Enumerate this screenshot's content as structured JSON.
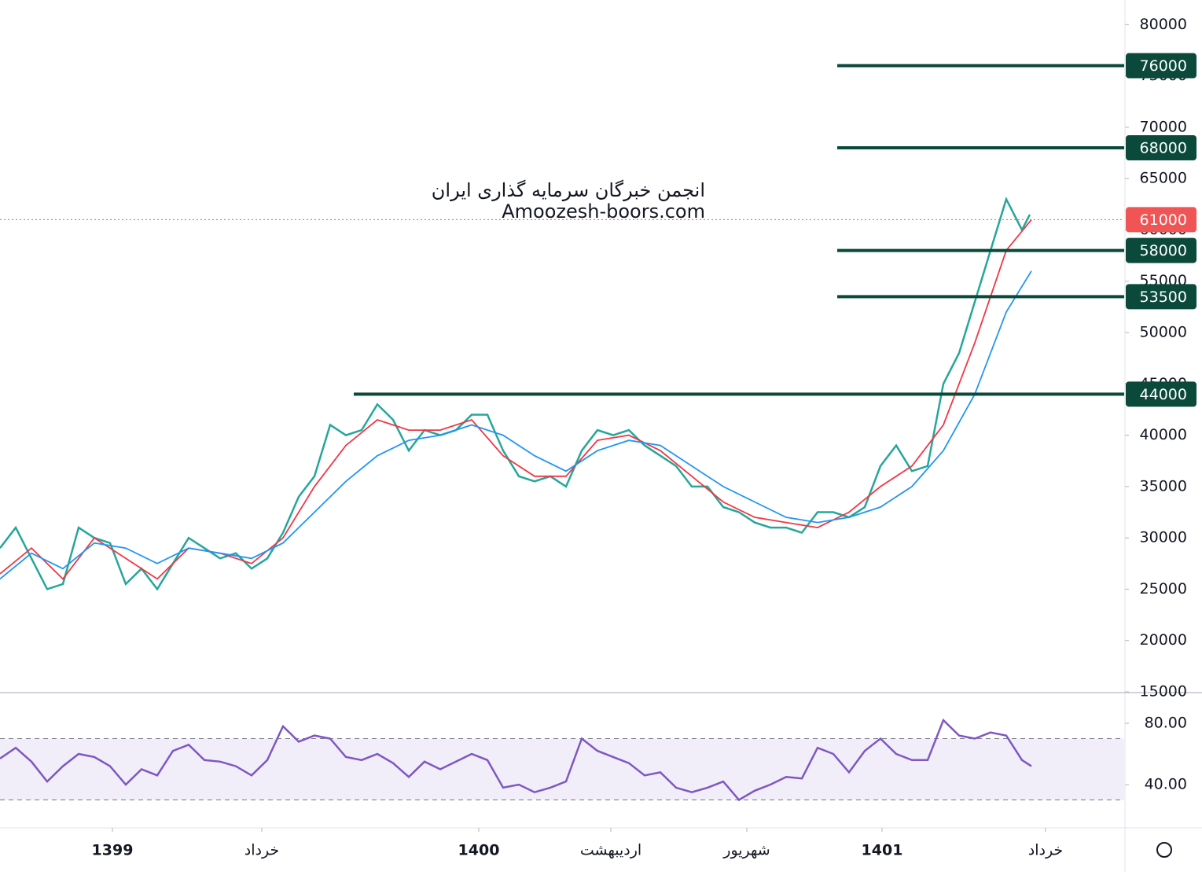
{
  "chart_data": [
    {
      "type": "line",
      "watermark": [
        "انجمن خبرگان سرمایه گذاری ایران",
        "Amoozesh-boors.com"
      ],
      "xlim": [
        0,
        1430
      ],
      "ylim": [
        15000,
        82400
      ],
      "yticks": [
        15000,
        20000,
        25000,
        30000,
        35000,
        40000,
        45000,
        50000,
        55000,
        60000,
        65000,
        70000,
        75000,
        80000
      ],
      "series": [
        {
          "color": "#26a69a",
          "x": [
            0,
            20,
            40,
            60,
            80,
            100,
            120,
            140,
            160,
            180,
            200,
            220,
            240,
            260,
            280,
            300,
            320,
            340,
            360,
            380,
            400,
            420,
            440,
            460,
            480,
            500,
            520,
            540,
            560,
            580,
            600,
            620,
            640,
            660,
            680,
            700,
            720,
            740,
            760,
            780,
            800,
            820,
            840,
            860,
            880,
            900,
            920,
            940,
            960,
            980,
            1000,
            1020,
            1040,
            1060,
            1080,
            1100,
            1120,
            1140,
            1160,
            1180,
            1200,
            1220,
            1240,
            1260,
            1280,
            1300,
            1310
          ],
          "values": [
            29000,
            31000,
            28000,
            25000,
            25500,
            31000,
            30000,
            29500,
            25500,
            27000,
            25000,
            27500,
            30000,
            29000,
            28000,
            28500,
            27000,
            28000,
            30500,
            34000,
            36000,
            41000,
            40000,
            40500,
            43000,
            41500,
            38500,
            40500,
            40000,
            40500,
            42000,
            42000,
            38500,
            36000,
            35500,
            36000,
            35000,
            38500,
            40500,
            40000,
            40500,
            39000,
            38000,
            37000,
            35000,
            35000,
            33000,
            32500,
            31500,
            31000,
            31000,
            30500,
            32500,
            32500,
            32000,
            33000,
            37000,
            39000,
            36500,
            37000,
            45000,
            48000,
            53000,
            58000,
            63000,
            60000,
            61500
          ]
        },
        {
          "color": "#f23645",
          "x": [
            0,
            40,
            80,
            120,
            160,
            200,
            240,
            280,
            320,
            360,
            400,
            440,
            480,
            520,
            560,
            600,
            640,
            680,
            720,
            760,
            800,
            840,
            880,
            920,
            960,
            1000,
            1040,
            1080,
            1120,
            1160,
            1200,
            1240,
            1280,
            1312
          ],
          "values": [
            26500,
            29000,
            26000,
            30000,
            28000,
            26000,
            29000,
            28500,
            27500,
            30000,
            35000,
            39000,
            41500,
            40500,
            40500,
            41500,
            38000,
            36000,
            36000,
            39500,
            40000,
            38500,
            36000,
            33500,
            32000,
            31500,
            31000,
            32500,
            35000,
            37000,
            41000,
            49000,
            58000,
            61000
          ]
        },
        {
          "color": "#2196f3",
          "x": [
            0,
            40,
            80,
            120,
            160,
            200,
            240,
            280,
            320,
            360,
            400,
            440,
            480,
            520,
            560,
            600,
            640,
            680,
            720,
            760,
            800,
            840,
            880,
            920,
            960,
            1000,
            1040,
            1080,
            1120,
            1160,
            1200,
            1240,
            1280,
            1312
          ],
          "values": [
            26000,
            28500,
            27000,
            29500,
            29000,
            27500,
            29000,
            28500,
            28000,
            29500,
            32500,
            35500,
            38000,
            39500,
            40000,
            41000,
            40000,
            38000,
            36500,
            38500,
            39500,
            39000,
            37000,
            35000,
            33500,
            32000,
            31500,
            32000,
            33000,
            35000,
            38500,
            44000,
            52000,
            56000
          ]
        }
      ],
      "levels": [
        {
          "value": 76000,
          "x_start": 1065
        },
        {
          "value": 68000,
          "x_start": 1065
        },
        {
          "value": 58000,
          "x_start": 1065
        },
        {
          "value": 53500,
          "x_start": 1065
        },
        {
          "value": 44000,
          "x_start": 450
        }
      ],
      "last_price": 61000,
      "level_color": "#0b4a3a",
      "last_price_color": "#f05454"
    },
    {
      "type": "line",
      "xlim": [
        0,
        1430
      ],
      "ylim": [
        12.3,
        99.5
      ],
      "yticks": [
        {
          "value": 80,
          "label": "80.00"
        },
        {
          "value": 40,
          "label": "40.00"
        }
      ],
      "bands": [
        30,
        70
      ],
      "series": [
        {
          "color": "#7e57c2",
          "x": [
            0,
            20,
            40,
            60,
            80,
            100,
            120,
            140,
            160,
            180,
            200,
            220,
            240,
            260,
            280,
            300,
            320,
            340,
            360,
            380,
            400,
            420,
            440,
            460,
            480,
            500,
            520,
            540,
            560,
            580,
            600,
            620,
            640,
            660,
            680,
            700,
            720,
            740,
            760,
            780,
            800,
            820,
            840,
            860,
            880,
            900,
            920,
            940,
            960,
            980,
            1000,
            1020,
            1040,
            1060,
            1080,
            1100,
            1120,
            1140,
            1160,
            1180,
            1200,
            1220,
            1240,
            1260,
            1280,
            1300,
            1312
          ],
          "values": [
            57,
            64,
            55,
            42,
            52,
            60,
            58,
            52,
            40,
            50,
            46,
            62,
            66,
            56,
            55,
            52,
            46,
            56,
            78,
            68,
            72,
            70,
            58,
            56,
            60,
            54,
            45,
            55,
            50,
            55,
            60,
            56,
            38,
            40,
            35,
            38,
            42,
            70,
            62,
            58,
            54,
            46,
            48,
            38,
            35,
            38,
            42,
            30,
            36,
            40,
            45,
            44,
            64,
            60,
            48,
            62,
            70,
            60,
            56,
            56,
            82,
            72,
            70,
            74,
            72,
            56,
            52
          ]
        }
      ],
      "xticks": [
        {
          "value": 143,
          "label": "1399"
        },
        {
          "value": 333,
          "label": "خرداد"
        },
        {
          "value": 609,
          "label": "1400"
        },
        {
          "value": 777,
          "label": "اردیبهشت"
        },
        {
          "value": 950,
          "label": "شهریور"
        },
        {
          "value": 1122,
          "label": "1401"
        },
        {
          "value": 1330,
          "label": "خرداد"
        }
      ]
    }
  ]
}
